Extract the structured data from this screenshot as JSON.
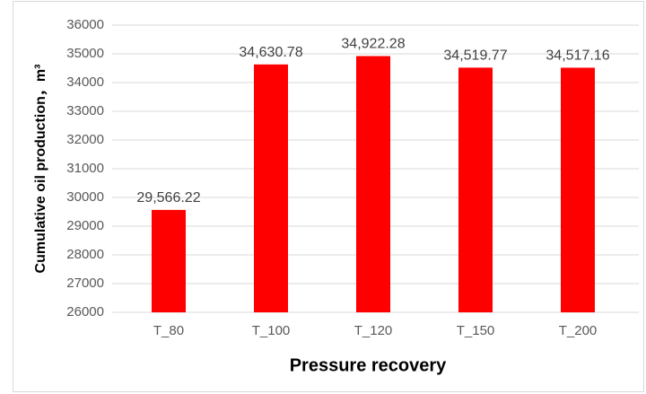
{
  "chart_data": {
    "type": "bar",
    "x_label": "Pressure recovery",
    "y_label": "Cumulative oil production，m³",
    "categories": [
      "T_80",
      "T_100",
      "T_120",
      "T_150",
      "T_200"
    ],
    "values": [
      29566.22,
      34630.78,
      34922.28,
      34519.77,
      34517.16
    ],
    "value_labels": [
      "29,566.22",
      "34,630.78",
      "34,922.28",
      "34,519.77",
      "34,517.16"
    ],
    "color": "#ff0000",
    "ylim": [
      26000,
      36000
    ],
    "yticks": [
      26000,
      27000,
      28000,
      29000,
      30000,
      31000,
      32000,
      33000,
      34000,
      35000,
      36000
    ],
    "grid": true
  }
}
